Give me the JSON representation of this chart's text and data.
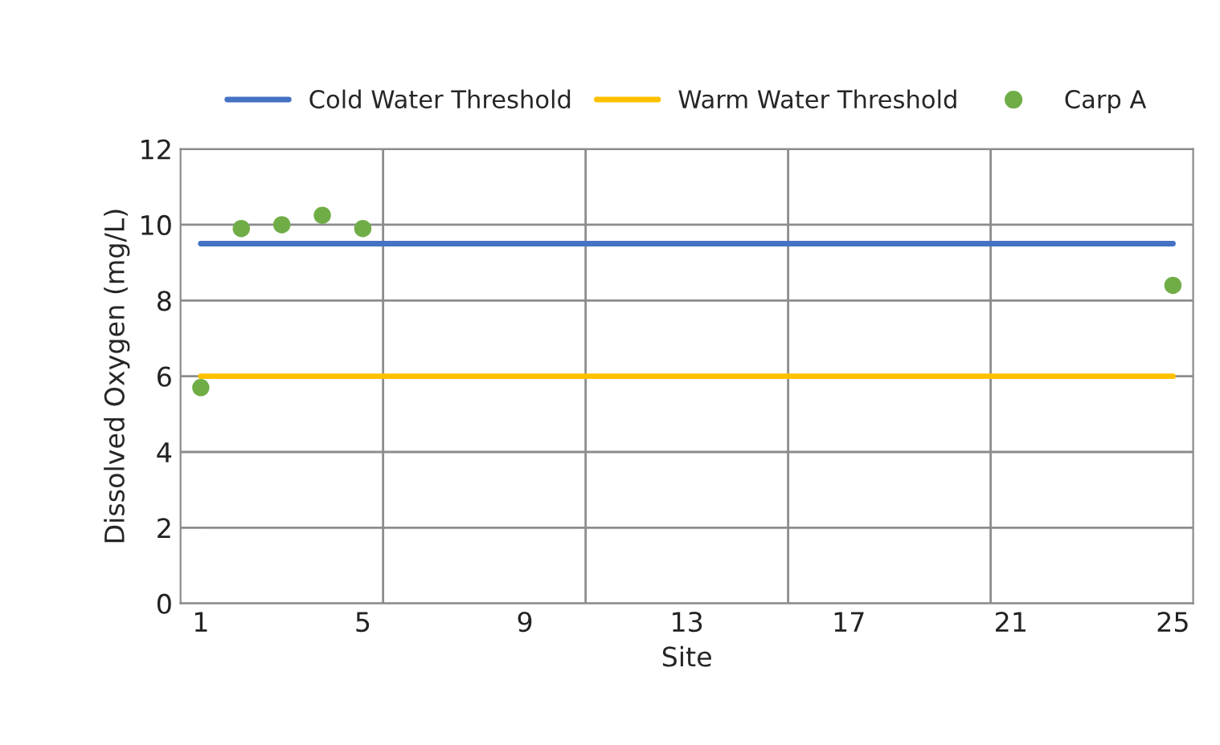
{
  "chart_data": {
    "type": "line",
    "xlabel": "Site",
    "ylabel": "Dissolved Oxygen (mg/L)",
    "series": [
      {
        "name": "Cold Water Threshold",
        "color": "#4472c4",
        "x": [
          1,
          25
        ],
        "values": [
          9.5,
          9.5
        ]
      },
      {
        "name": "Warm Water Threshold",
        "color": "#ffc000",
        "x": [
          1,
          25
        ],
        "values": [
          6,
          6
        ]
      },
      {
        "name": "Carp A",
        "color": "#70ad47",
        "type": "scatter",
        "x": [
          1,
          2,
          3,
          4,
          5,
          25
        ],
        "values": [
          5.7,
          9.9,
          10.0,
          10.25,
          9.9,
          8.4
        ]
      }
    ],
    "xlim": [
      0.5,
      25.5
    ],
    "xticks": [
      1,
      5,
      9,
      13,
      17,
      21,
      25
    ],
    "ylim": [
      0,
      12
    ],
    "yticks": [
      0,
      2,
      4,
      6,
      8,
      10,
      12
    ],
    "grid": "y",
    "legend": "top",
    "ref_lines": [
      {
        "axis": "x",
        "value": 5.5,
        "color": "#8c8c8c"
      },
      {
        "axis": "x",
        "value": 10.5,
        "color": "#8c8c8c"
      },
      {
        "axis": "x",
        "value": 15.5,
        "color": "#8c8c8c"
      },
      {
        "axis": "x",
        "value": 20.5,
        "color": "#8c8c8c"
      }
    ]
  }
}
